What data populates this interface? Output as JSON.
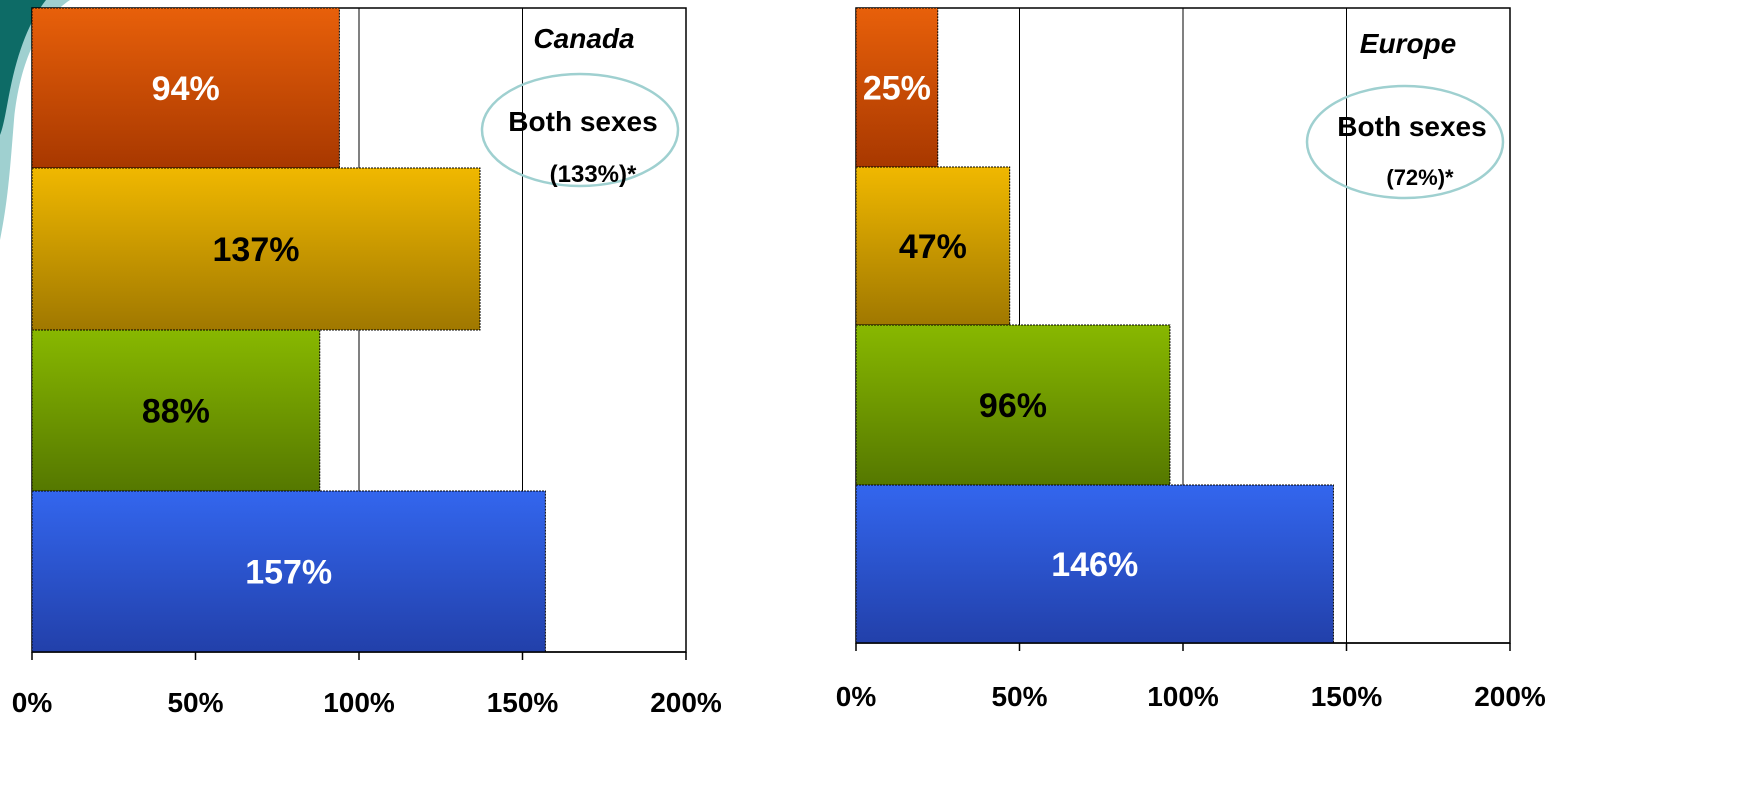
{
  "chart_data": [
    {
      "type": "bar",
      "orientation": "horizontal",
      "title": "Canada",
      "annotation": {
        "line1": "Both sexes",
        "line2": "(133%)*"
      },
      "categories": [
        "",
        "",
        "",
        ""
      ],
      "values": [
        94,
        137,
        88,
        157
      ],
      "value_labels": [
        "94%",
        "137%",
        "88%",
        "157%"
      ],
      "bar_colors": [
        "#e8600a",
        "#f0b800",
        "#88b800",
        "#3366ee"
      ],
      "label_colors": [
        "#ffffff",
        "#000000",
        "#000000",
        "#ffffff"
      ],
      "xlim": [
        0,
        200
      ],
      "xticks": [
        0,
        50,
        100,
        150,
        200
      ],
      "xtick_labels": [
        "0%",
        "50%",
        "100%",
        "150%",
        "200%"
      ],
      "grid": "vertical"
    },
    {
      "type": "bar",
      "orientation": "horizontal",
      "title": "Europe",
      "annotation": {
        "line1": "Both sexes",
        "line2": "(72%)*"
      },
      "categories": [
        "",
        "",
        "",
        ""
      ],
      "values": [
        25,
        47,
        96,
        146
      ],
      "value_labels": [
        "25%",
        "47%",
        "96%",
        "146%"
      ],
      "bar_colors": [
        "#e8600a",
        "#f0b800",
        "#88b800",
        "#3366ee"
      ],
      "label_colors": [
        "#ffffff",
        "#000000",
        "#000000",
        "#ffffff"
      ],
      "xlim": [
        0,
        200
      ],
      "xticks": [
        0,
        50,
        100,
        150,
        200
      ],
      "xtick_labels": [
        "0%",
        "50%",
        "100%",
        "150%",
        "200%"
      ],
      "grid": "vertical"
    }
  ]
}
